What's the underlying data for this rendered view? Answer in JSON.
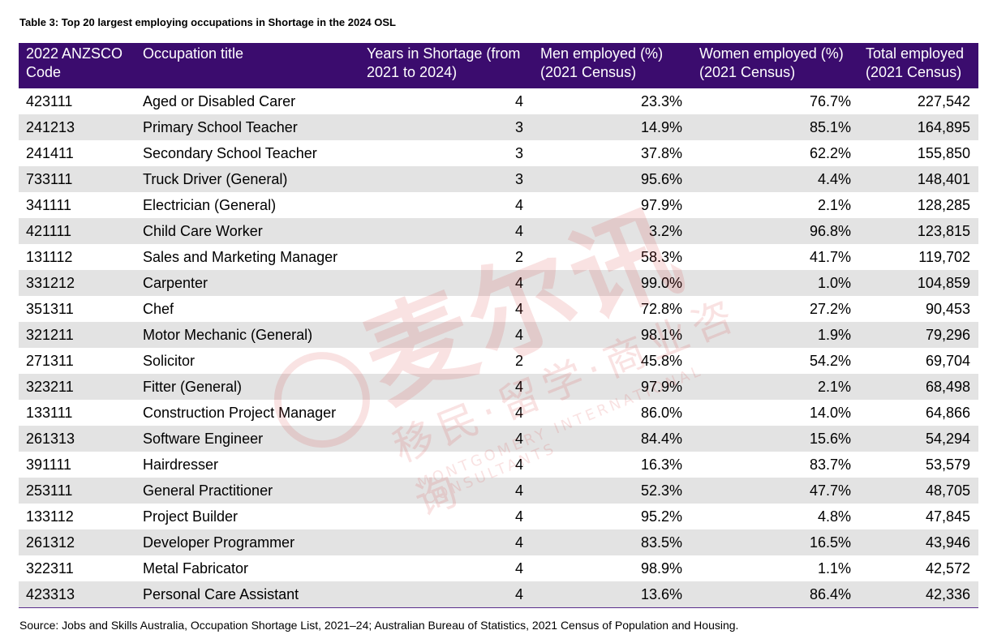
{
  "caption": "Table 3: Top 20 largest employing occupations in Shortage in the 2024 OSL",
  "headers": {
    "code": "2022 ANZSCO Code",
    "title": "Occupation title",
    "years": "Years in Shortage (from 2021 to 2024)",
    "men": "Men employed (%) (2021 Census)",
    "women": "Women employed (%) (2021 Census)",
    "total": "Total employed (2021 Census)"
  },
  "rows": [
    [
      "423111",
      "Aged or Disabled Carer",
      "4",
      "23.3%",
      "76.7%",
      "227,542"
    ],
    [
      "241213",
      "Primary School Teacher",
      "3",
      "14.9%",
      "85.1%",
      "164,895"
    ],
    [
      "241411",
      "Secondary School Teacher",
      "3",
      "37.8%",
      "62.2%",
      "155,850"
    ],
    [
      "733111",
      "Truck Driver (General)",
      "3",
      "95.6%",
      "4.4%",
      "148,401"
    ],
    [
      "341111",
      "Electrician (General)",
      "4",
      "97.9%",
      "2.1%",
      "128,285"
    ],
    [
      "421111",
      "Child Care Worker",
      "4",
      "3.2%",
      "96.8%",
      "123,815"
    ],
    [
      "131112",
      "Sales and Marketing Manager",
      "2",
      "58.3%",
      "41.7%",
      "119,702"
    ],
    [
      "331212",
      "Carpenter",
      "4",
      "99.0%",
      "1.0%",
      "104,859"
    ],
    [
      "351311",
      "Chef",
      "4",
      "72.8%",
      "27.2%",
      "90,453"
    ],
    [
      "321211",
      "Motor Mechanic (General)",
      "4",
      "98.1%",
      "1.9%",
      "79,296"
    ],
    [
      "271311",
      "Solicitor",
      "2",
      "45.8%",
      "54.2%",
      "69,704"
    ],
    [
      "323211",
      "Fitter (General)",
      "4",
      "97.9%",
      "2.1%",
      "68,498"
    ],
    [
      "133111",
      "Construction Project Manager",
      "4",
      "86.0%",
      "14.0%",
      "64,866"
    ],
    [
      "261313",
      "Software Engineer",
      "4",
      "84.4%",
      "15.6%",
      "54,294"
    ],
    [
      "391111",
      "Hairdresser",
      "4",
      "16.3%",
      "83.7%",
      "53,579"
    ],
    [
      "253111",
      "General Practitioner",
      "4",
      "52.3%",
      "47.7%",
      "48,705"
    ],
    [
      "133112",
      "Project Builder",
      "4",
      "95.2%",
      "4.8%",
      "47,845"
    ],
    [
      "261312",
      "Developer Programmer",
      "4",
      "83.5%",
      "16.5%",
      "43,946"
    ],
    [
      "322311",
      "Metal Fabricator",
      "4",
      "98.9%",
      "1.1%",
      "42,572"
    ],
    [
      "423313",
      "Personal Care Assistant",
      "4",
      "13.6%",
      "86.4%",
      "42,336"
    ]
  ],
  "source": "Source: Jobs and Skills Australia, Occupation Shortage List, 2021–24; Australian Bureau of Statistics, 2021 Census of Population and Housing.",
  "watermark": {
    "big": "麦尔讯",
    "small": "移民·留学·商业咨询",
    "english": "MONTGOMERY INTERNATIONAL CONSULTANTS",
    "color": "#d42a2a"
  },
  "colors": {
    "header_bg": "#3b0c6e",
    "stripe": "#e3e3e3"
  }
}
